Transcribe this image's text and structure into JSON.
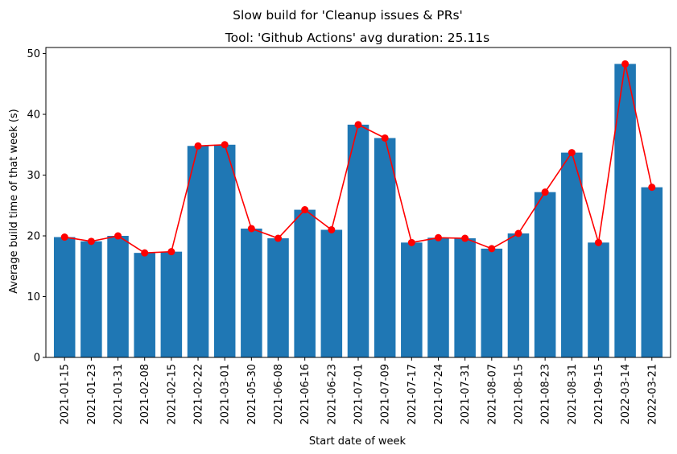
{
  "chart_data": {
    "type": "bar",
    "suptitle": "Slow build for 'Cleanup issues & PRs'",
    "title": "Tool: 'Github Actions' avg duration: 25.11s",
    "xlabel": "Start date of week",
    "ylabel": "Average build time of that week (s)",
    "ylim": [
      0,
      51
    ],
    "yticks": [
      0,
      10,
      20,
      30,
      40,
      50
    ],
    "categories": [
      "2021-01-15",
      "2021-01-23",
      "2021-01-31",
      "2021-02-08",
      "2021-02-15",
      "2021-02-22",
      "2021-03-01",
      "2021-05-30",
      "2021-06-08",
      "2021-06-16",
      "2021-06-23",
      "2021-07-01",
      "2021-07-09",
      "2021-07-17",
      "2021-07-24",
      "2021-07-31",
      "2021-08-07",
      "2021-08-15",
      "2021-08-23",
      "2021-08-31",
      "2021-09-15",
      "2022-03-14",
      "2022-03-21"
    ],
    "values": [
      19.8,
      19.1,
      20.0,
      17.2,
      17.4,
      34.8,
      35.0,
      21.2,
      19.6,
      24.3,
      21.0,
      38.3,
      36.1,
      18.9,
      19.7,
      19.6,
      17.9,
      20.4,
      27.2,
      33.7,
      18.9,
      48.3,
      28.0
    ],
    "grid": false,
    "colors": {
      "bar": "#1f77b4",
      "line": "#ff0000",
      "marker": "#ff0000"
    }
  }
}
